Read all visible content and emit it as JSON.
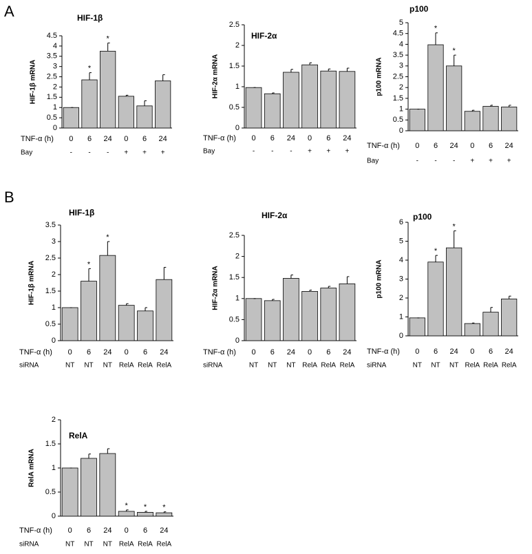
{
  "panel_labels": [
    "A",
    "B"
  ],
  "chart_data": [
    {
      "type": "bar",
      "title": "HIF-1β",
      "y_label": "HIF-1β mRNA",
      "x_label": "TNF-α (h)",
      "group_label": "Bay",
      "categories": [
        "0",
        "6",
        "24",
        "0",
        "6",
        "24"
      ],
      "groups": [
        "-",
        "-",
        "-",
        "+",
        "+",
        "+"
      ],
      "values": [
        1.0,
        2.35,
        3.75,
        1.55,
        1.08,
        2.3
      ],
      "errors": [
        0,
        0.35,
        0.4,
        0.05,
        0.25,
        0.3
      ],
      "significance": [
        null,
        "*",
        "*",
        null,
        null,
        null
      ],
      "color": "#c0c0c0",
      "ylim": [
        0,
        4.5
      ],
      "yticks": [
        0,
        0.5,
        1,
        1.5,
        2,
        2.5,
        3,
        3.5,
        4,
        4.5
      ]
    },
    {
      "type": "bar",
      "title": "HIF-2α",
      "y_label": "HIF-2α mRNA",
      "x_label": "TNF-α (h)",
      "group_label": "Bay",
      "categories": [
        "0",
        "6",
        "24",
        "0",
        "6",
        "24"
      ],
      "groups": [
        "-",
        "-",
        "-",
        "+",
        "+",
        "+"
      ],
      "values": [
        0.98,
        0.83,
        1.35,
        1.53,
        1.38,
        1.37
      ],
      "errors": [
        0,
        0.02,
        0.07,
        0.05,
        0.05,
        0.08
      ],
      "significance": [
        null,
        null,
        null,
        null,
        null,
        null
      ],
      "color": "#c0c0c0",
      "ylim": [
        0,
        2.5
      ],
      "yticks": [
        0,
        0.5,
        1,
        1.5,
        2,
        2.5
      ]
    },
    {
      "type": "bar",
      "title": "p100",
      "y_label": "p100 mRNA",
      "x_label": "TNF-α (h)",
      "group_label": "Bay",
      "categories": [
        "0",
        "6",
        "24",
        "0",
        "6",
        "24"
      ],
      "groups": [
        "-",
        "-",
        "-",
        "+",
        "+",
        "+"
      ],
      "values": [
        1.0,
        3.98,
        3.0,
        0.9,
        1.13,
        1.1
      ],
      "errors": [
        0,
        0.55,
        0.5,
        0.05,
        0.05,
        0.08
      ],
      "significance": [
        null,
        "*",
        "*",
        null,
        null,
        null
      ],
      "color": "#c0c0c0",
      "ylim": [
        0,
        5
      ],
      "yticks": [
        0,
        0.5,
        1,
        1.5,
        2,
        2.5,
        3,
        3.5,
        4,
        4.5,
        5
      ]
    },
    {
      "type": "bar",
      "title": "HIF-1β",
      "y_label": "HIF-1β mRNA",
      "x_label": "TNF-α (h)",
      "group_label": "siRNA",
      "categories": [
        "0",
        "6",
        "24",
        "0",
        "6",
        "24"
      ],
      "groups": [
        "NT",
        "NT",
        "NT",
        "RelA",
        "RelA",
        "RelA"
      ],
      "values": [
        1.0,
        1.8,
        2.58,
        1.07,
        0.9,
        1.85
      ],
      "errors": [
        0,
        0.38,
        0.42,
        0.05,
        0.1,
        0.37
      ],
      "significance": [
        null,
        "*",
        "*",
        null,
        null,
        null
      ],
      "color": "#c0c0c0",
      "ylim": [
        0,
        3.5
      ],
      "yticks": [
        0,
        0.5,
        1,
        1.5,
        2,
        2.5,
        3,
        3.5
      ]
    },
    {
      "type": "bar",
      "title": "HIF-2α",
      "y_label": "HIF-2α mRNA",
      "x_label": "TNF-α (h)",
      "group_label": "siRNA",
      "categories": [
        "0",
        "6",
        "24",
        "0",
        "6",
        "24"
      ],
      "groups": [
        "NT",
        "NT",
        "NT",
        "RelA",
        "RelA",
        "RelA"
      ],
      "values": [
        1.0,
        0.95,
        1.48,
        1.17,
        1.25,
        1.35
      ],
      "errors": [
        0,
        0.03,
        0.08,
        0.03,
        0.04,
        0.17
      ],
      "significance": [
        null,
        null,
        null,
        null,
        null,
        null
      ],
      "color": "#c0c0c0",
      "ylim": [
        0,
        2.5
      ],
      "yticks": [
        0,
        0.5,
        1,
        1.5,
        2,
        2.5
      ]
    },
    {
      "type": "bar",
      "title": "p100",
      "y_label": "p100 mRNA",
      "x_label": "TNF-α (h)",
      "group_label": "siRNA",
      "categories": [
        "0",
        "6",
        "24",
        "0",
        "6",
        "24"
      ],
      "groups": [
        "NT",
        "NT",
        "NT",
        "RelA",
        "RelA",
        "RelA"
      ],
      "values": [
        0.95,
        3.9,
        4.65,
        0.65,
        1.25,
        1.95
      ],
      "errors": [
        0,
        0.35,
        0.9,
        0.03,
        0.25,
        0.15
      ],
      "significance": [
        null,
        "*",
        "*",
        null,
        null,
        null
      ],
      "color": "#c0c0c0",
      "ylim": [
        0,
        6
      ],
      "yticks": [
        0,
        1,
        2,
        3,
        4,
        5,
        6
      ]
    },
    {
      "type": "bar",
      "title": "RelA",
      "y_label": "RelA mRNA",
      "x_label": "TNF-α (h)",
      "group_label": "siRNA",
      "categories": [
        "0",
        "6",
        "24",
        "0",
        "6",
        "24"
      ],
      "groups": [
        "NT",
        "NT",
        "NT",
        "RelA",
        "RelA",
        "RelA"
      ],
      "values": [
        1.0,
        1.2,
        1.3,
        0.1,
        0.08,
        0.07
      ],
      "errors": [
        0,
        0.09,
        0.1,
        0.03,
        0.02,
        0.02
      ],
      "significance": [
        null,
        null,
        null,
        "*",
        "*",
        "*"
      ],
      "color": "#c0c0c0",
      "ylim": [
        0,
        2
      ],
      "yticks": [
        0,
        0.5,
        1,
        1.5,
        2
      ]
    }
  ]
}
